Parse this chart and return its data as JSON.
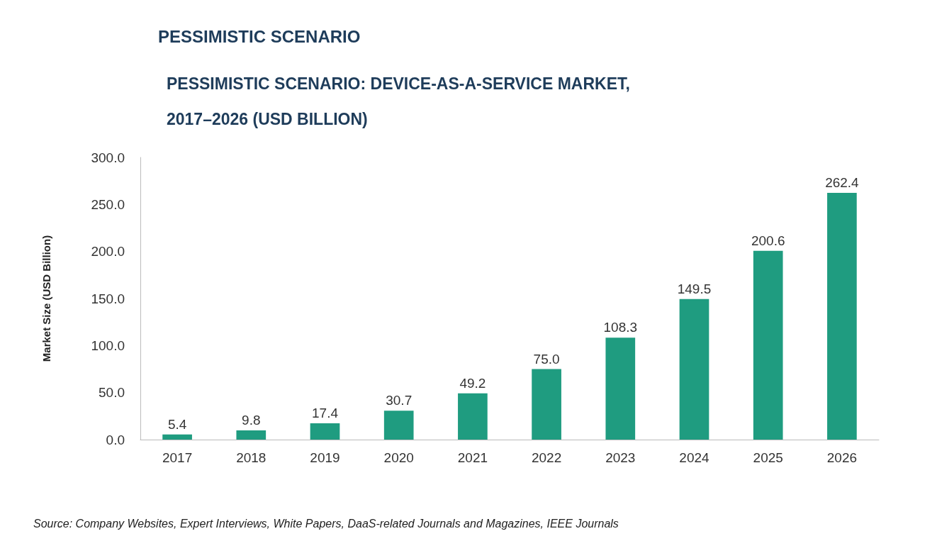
{
  "chart_data": {
    "type": "bar",
    "title": "PESSIMISTIC SCENARIO",
    "subtitle": "PESSIMISTIC SCENARIO: DEVICE-AS-A-SERVICE MARKET, 2017–2026 (USD BILLION)",
    "ylabel": "Market Size (USD Billion)",
    "categories": [
      "2017",
      "2018",
      "2019",
      "2020",
      "2021",
      "2022",
      "2023",
      "2024",
      "2025",
      "2026"
    ],
    "values": [
      5.4,
      9.8,
      17.4,
      30.7,
      49.2,
      75.0,
      108.3,
      149.5,
      200.6,
      262.4
    ],
    "color": "#1f9c80",
    "ylim": [
      0,
      300
    ],
    "yticks": [
      {
        "value": 0,
        "label": "0.0"
      },
      {
        "value": 50,
        "label": "50.0"
      },
      {
        "value": 100,
        "label": "100.0"
      },
      {
        "value": 150,
        "label": "150.0"
      },
      {
        "value": 200,
        "label": "200.0"
      },
      {
        "value": 250,
        "label": "250.0"
      },
      {
        "value": 300,
        "label": "300.0"
      }
    ],
    "grid": false,
    "value_labels": [
      "5.4",
      "9.8",
      "17.4",
      "30.7",
      "49.2",
      "75.0",
      "108.3",
      "149.5",
      "200.6",
      "262.4"
    ],
    "annotations": [
      "Source: Company Websites, Expert Interviews, White Papers, DaaS-related Journals and Magazines, IEEE Journals"
    ]
  }
}
